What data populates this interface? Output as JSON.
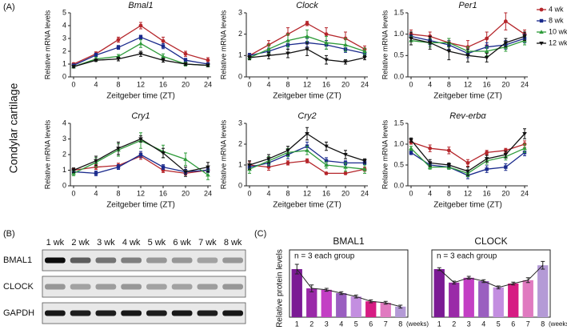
{
  "panel_labels": [
    "(A)",
    "(B)",
    "(C)"
  ],
  "side_label": "Condylar cartilage",
  "legend": [
    {
      "name": "4 wk",
      "color": "#b5262b",
      "marker": "circle"
    },
    {
      "name": "8 wk",
      "color": "#1a2a8c",
      "marker": "square"
    },
    {
      "name": "10 wk",
      "color": "#2e9b3a",
      "marker": "triangle"
    },
    {
      "name": "12 wk",
      "color": "#111111",
      "marker": "down-triangle"
    }
  ],
  "blot": {
    "lanes": [
      "1 wk",
      "2 wk",
      "3 wk",
      "4 wk",
      "5 wk",
      "6 wk",
      "7 wk",
      "8 wk"
    ],
    "rows": [
      "BMAL1",
      "CLOCK",
      "GAPDH"
    ]
  },
  "chart_data": [
    {
      "type": "line",
      "title": "Bmal1",
      "ylabel": "Relative mRNA levels",
      "xlabel": "Zeitgeber time (ZT)",
      "x": [
        0,
        4,
        8,
        12,
        16,
        20,
        24
      ],
      "xlim": [
        0,
        24
      ],
      "xticks": [
        0,
        4,
        8,
        12,
        16,
        20,
        24
      ],
      "ylim": [
        0,
        5
      ],
      "yticks": [
        0,
        1,
        2,
        3,
        4,
        5
      ],
      "series": [
        {
          "values": [
            1.0,
            1.8,
            2.9,
            4.0,
            2.8,
            1.8,
            1.3
          ],
          "errors": [
            0.1,
            0.15,
            0.2,
            0.25,
            0.3,
            0.2,
            0.2
          ]
        },
        {
          "values": [
            0.9,
            1.7,
            2.3,
            3.1,
            2.4,
            1.3,
            1.0
          ],
          "errors": [
            0.1,
            0.15,
            0.15,
            0.15,
            0.2,
            0.15,
            0.1
          ]
        },
        {
          "values": [
            0.8,
            1.4,
            1.6,
            2.6,
            1.6,
            1.0,
            0.9
          ],
          "errors": [
            0.1,
            0.15,
            0.15,
            0.3,
            0.2,
            0.15,
            0.1
          ]
        },
        {
          "values": [
            0.8,
            1.3,
            1.4,
            1.8,
            1.3,
            1.0,
            0.9
          ],
          "errors": [
            0.1,
            0.1,
            0.15,
            0.2,
            0.15,
            0.1,
            0.1
          ]
        }
      ]
    },
    {
      "type": "line",
      "title": "Clock",
      "ylabel": "Relative mRNA levels",
      "xlabel": "Zeitgeber time (ZT)",
      "x": [
        0,
        4,
        8,
        12,
        16,
        20,
        24
      ],
      "xlim": [
        0,
        24
      ],
      "xticks": [
        0,
        4,
        8,
        12,
        16,
        20,
        24
      ],
      "ylim": [
        0,
        3
      ],
      "yticks": [
        0,
        1,
        2,
        3
      ],
      "series": [
        {
          "values": [
            1.0,
            1.5,
            2.0,
            2.5,
            2.0,
            1.8,
            1.3
          ],
          "errors": [
            0.1,
            0.2,
            0.3,
            0.1,
            0.3,
            0.3,
            0.15
          ]
        },
        {
          "values": [
            1.0,
            1.2,
            1.5,
            1.6,
            1.5,
            1.3,
            1.1
          ],
          "errors": [
            0.1,
            0.15,
            0.2,
            0.2,
            0.2,
            0.15,
            0.1
          ]
        },
        {
          "values": [
            0.9,
            1.3,
            1.7,
            1.9,
            1.6,
            1.5,
            1.2
          ],
          "errors": [
            0.1,
            0.2,
            0.3,
            0.3,
            0.3,
            0.3,
            0.15
          ]
        },
        {
          "values": [
            0.9,
            1.0,
            1.1,
            1.3,
            0.8,
            0.7,
            0.9
          ],
          "errors": [
            0.1,
            0.15,
            0.2,
            0.3,
            0.2,
            0.1,
            0.1
          ]
        }
      ]
    },
    {
      "type": "line",
      "title": "Per1",
      "ylabel": "Relative mRNA levels",
      "xlabel": "Zeitgeber time (ZT)",
      "x": [
        0,
        4,
        8,
        12,
        16,
        20,
        24
      ],
      "xlim": [
        0,
        24
      ],
      "xticks": [
        0,
        4,
        8,
        12,
        16,
        20,
        24
      ],
      "ylim": [
        0,
        1.5
      ],
      "yticks": [
        {
          "value": 0,
          "label": "0.0"
        },
        0.5,
        {
          "value": 1,
          "label": "1.0"
        },
        1.5
      ],
      "series": [
        {
          "values": [
            1.0,
            0.95,
            0.8,
            0.7,
            0.9,
            1.3,
            1.0
          ],
          "errors": [
            0.1,
            0.1,
            0.1,
            0.15,
            0.15,
            0.2,
            0.1
          ]
        },
        {
          "values": [
            0.95,
            0.85,
            0.75,
            0.55,
            0.7,
            0.75,
            0.9
          ],
          "errors": [
            0.1,
            0.1,
            0.1,
            0.1,
            0.1,
            0.1,
            0.1
          ]
        },
        {
          "values": [
            0.85,
            0.8,
            0.8,
            0.6,
            0.6,
            0.7,
            0.85
          ],
          "errors": [
            0.1,
            0.1,
            0.1,
            0.1,
            0.1,
            0.1,
            0.1
          ]
        },
        {
          "values": [
            0.9,
            0.8,
            0.6,
            0.5,
            0.45,
            0.8,
            0.95
          ],
          "errors": [
            0.15,
            0.15,
            0.2,
            0.15,
            0.1,
            0.1,
            0.1
          ]
        }
      ]
    },
    {
      "type": "line",
      "title": "Cry1",
      "ylabel": "Relative mRNA levels",
      "xlabel": "Zeitgeber time (ZT)",
      "x": [
        0,
        4,
        8,
        12,
        16,
        20,
        24
      ],
      "xlim": [
        0,
        24
      ],
      "xticks": [
        0,
        4,
        8,
        12,
        16,
        20,
        24
      ],
      "ylim": [
        0,
        4
      ],
      "yticks": [
        0,
        1,
        2,
        3,
        4
      ],
      "series": [
        {
          "values": [
            1.0,
            1.2,
            1.3,
            1.9,
            1.0,
            0.8,
            1.0
          ],
          "errors": [
            0.1,
            0.15,
            0.15,
            0.2,
            0.15,
            0.1,
            0.15
          ]
        },
        {
          "values": [
            0.9,
            0.8,
            1.2,
            2.0,
            1.2,
            0.9,
            1.0
          ],
          "errors": [
            0.1,
            0.15,
            0.15,
            0.2,
            0.15,
            0.15,
            0.15
          ]
        },
        {
          "values": [
            0.8,
            1.5,
            2.3,
            2.9,
            2.2,
            1.7,
            0.7
          ],
          "errors": [
            0.15,
            0.3,
            0.4,
            0.5,
            0.4,
            0.4,
            0.3
          ]
        },
        {
          "values": [
            1.0,
            1.6,
            2.4,
            3.0,
            2.1,
            0.9,
            1.2
          ],
          "errors": [
            0.15,
            0.3,
            0.4,
            0.2,
            0.3,
            0.3,
            0.3
          ]
        }
      ]
    },
    {
      "type": "line",
      "title": "Cry2",
      "ylabel": "Relative mRNA levels",
      "xlabel": "Zeitgeber time (ZT)",
      "x": [
        0,
        4,
        8,
        12,
        16,
        20,
        24
      ],
      "xlim": [
        0,
        24
      ],
      "xticks": [
        0,
        4,
        8,
        12,
        16,
        20,
        24
      ],
      "ylim": [
        0,
        3
      ],
      "yticks": [
        0,
        1,
        2,
        3
      ],
      "series": [
        {
          "values": [
            1.0,
            0.9,
            1.1,
            1.2,
            0.6,
            0.6,
            0.8
          ],
          "errors": [
            0.15,
            0.15,
            0.1,
            0.1,
            0.05,
            0.05,
            0.1
          ]
        },
        {
          "values": [
            0.9,
            1.1,
            1.5,
            1.9,
            1.2,
            1.1,
            1.1
          ],
          "errors": [
            0.15,
            0.15,
            0.2,
            0.2,
            0.15,
            0.1,
            0.1
          ]
        },
        {
          "values": [
            0.8,
            1.2,
            1.6,
            1.7,
            1.0,
            0.9,
            0.8
          ],
          "errors": [
            0.2,
            0.2,
            0.2,
            0.2,
            0.15,
            0.2,
            0.2
          ]
        },
        {
          "values": [
            1.0,
            1.3,
            1.7,
            2.5,
            1.9,
            1.5,
            1.2
          ],
          "errors": [
            0.2,
            0.2,
            0.2,
            0.3,
            0.2,
            0.2,
            0.1
          ]
        }
      ]
    },
    {
      "type": "line",
      "title": "Rev-erbα",
      "ylabel": "Relative mRNA levels",
      "xlabel": "Zeitgeber time (ZT)",
      "x": [
        0,
        4,
        8,
        12,
        16,
        20,
        24
      ],
      "xlim": [
        0,
        24
      ],
      "xticks": [
        0,
        4,
        8,
        12,
        16,
        20,
        24
      ],
      "ylim": [
        0,
        1.5
      ],
      "yticks": [
        {
          "value": 0,
          "label": "0.0"
        },
        0.5,
        {
          "value": 1,
          "label": "1.0"
        },
        1.5
      ],
      "series": [
        {
          "values": [
            1.05,
            0.9,
            0.85,
            0.55,
            0.8,
            0.85,
            1.0
          ],
          "errors": [
            0.05,
            0.08,
            0.08,
            0.08,
            0.05,
            0.05,
            0.08
          ]
        },
        {
          "values": [
            0.8,
            0.5,
            0.45,
            0.25,
            0.4,
            0.45,
            0.8
          ],
          "errors": [
            0.05,
            0.08,
            0.05,
            0.08,
            0.08,
            0.08,
            0.08
          ]
        },
        {
          "values": [
            0.9,
            0.45,
            0.45,
            0.3,
            0.6,
            0.7,
            0.9
          ],
          "errors": [
            0.05,
            0.05,
            0.05,
            0.08,
            0.08,
            0.08,
            0.1
          ]
        },
        {
          "values": [
            1.1,
            0.55,
            0.5,
            0.35,
            0.65,
            0.75,
            1.25
          ],
          "errors": [
            0.05,
            0.08,
            0.05,
            0.1,
            0.08,
            0.08,
            0.12
          ]
        }
      ]
    },
    {
      "type": "bar",
      "title": "BMAL1",
      "ylabel": "Relative protein levels",
      "note": "n = 3 each group",
      "xunit": "(weeks)",
      "categories": [
        "1",
        "2",
        "3",
        "4",
        "5",
        "6",
        "7",
        "8"
      ],
      "values": [
        1.0,
        0.6,
        0.57,
        0.5,
        0.43,
        0.33,
        0.3,
        0.22
      ],
      "errors": [
        0.1,
        0.07,
        0.03,
        0.03,
        0.03,
        0.03,
        0.03,
        0.03
      ],
      "colors": [
        "#7b1a94",
        "#9a2aa8",
        "#c33fc4",
        "#9a5fc0",
        "#c38ee0",
        "#d61c83",
        "#e07ac0",
        "#b49ad6"
      ],
      "ylim": [
        0,
        1.4
      ]
    },
    {
      "type": "bar",
      "title": "CLOCK",
      "note": "n = 3 each group",
      "xunit": "(weeks)",
      "categories": [
        "1",
        "2",
        "3",
        "4",
        "5",
        "6",
        "7",
        "8"
      ],
      "values": [
        1.0,
        0.72,
        0.82,
        0.75,
        0.62,
        0.7,
        0.77,
        1.08
      ],
      "errors": [
        0.03,
        0.03,
        0.03,
        0.03,
        0.03,
        0.03,
        0.05,
        0.08
      ],
      "colors": [
        "#7b1a94",
        "#9a2aa8",
        "#c33fc4",
        "#9a5fc0",
        "#c38ee0",
        "#d61c83",
        "#e07ac0",
        "#b49ad6"
      ],
      "ylim": [
        0,
        1.4
      ]
    }
  ]
}
